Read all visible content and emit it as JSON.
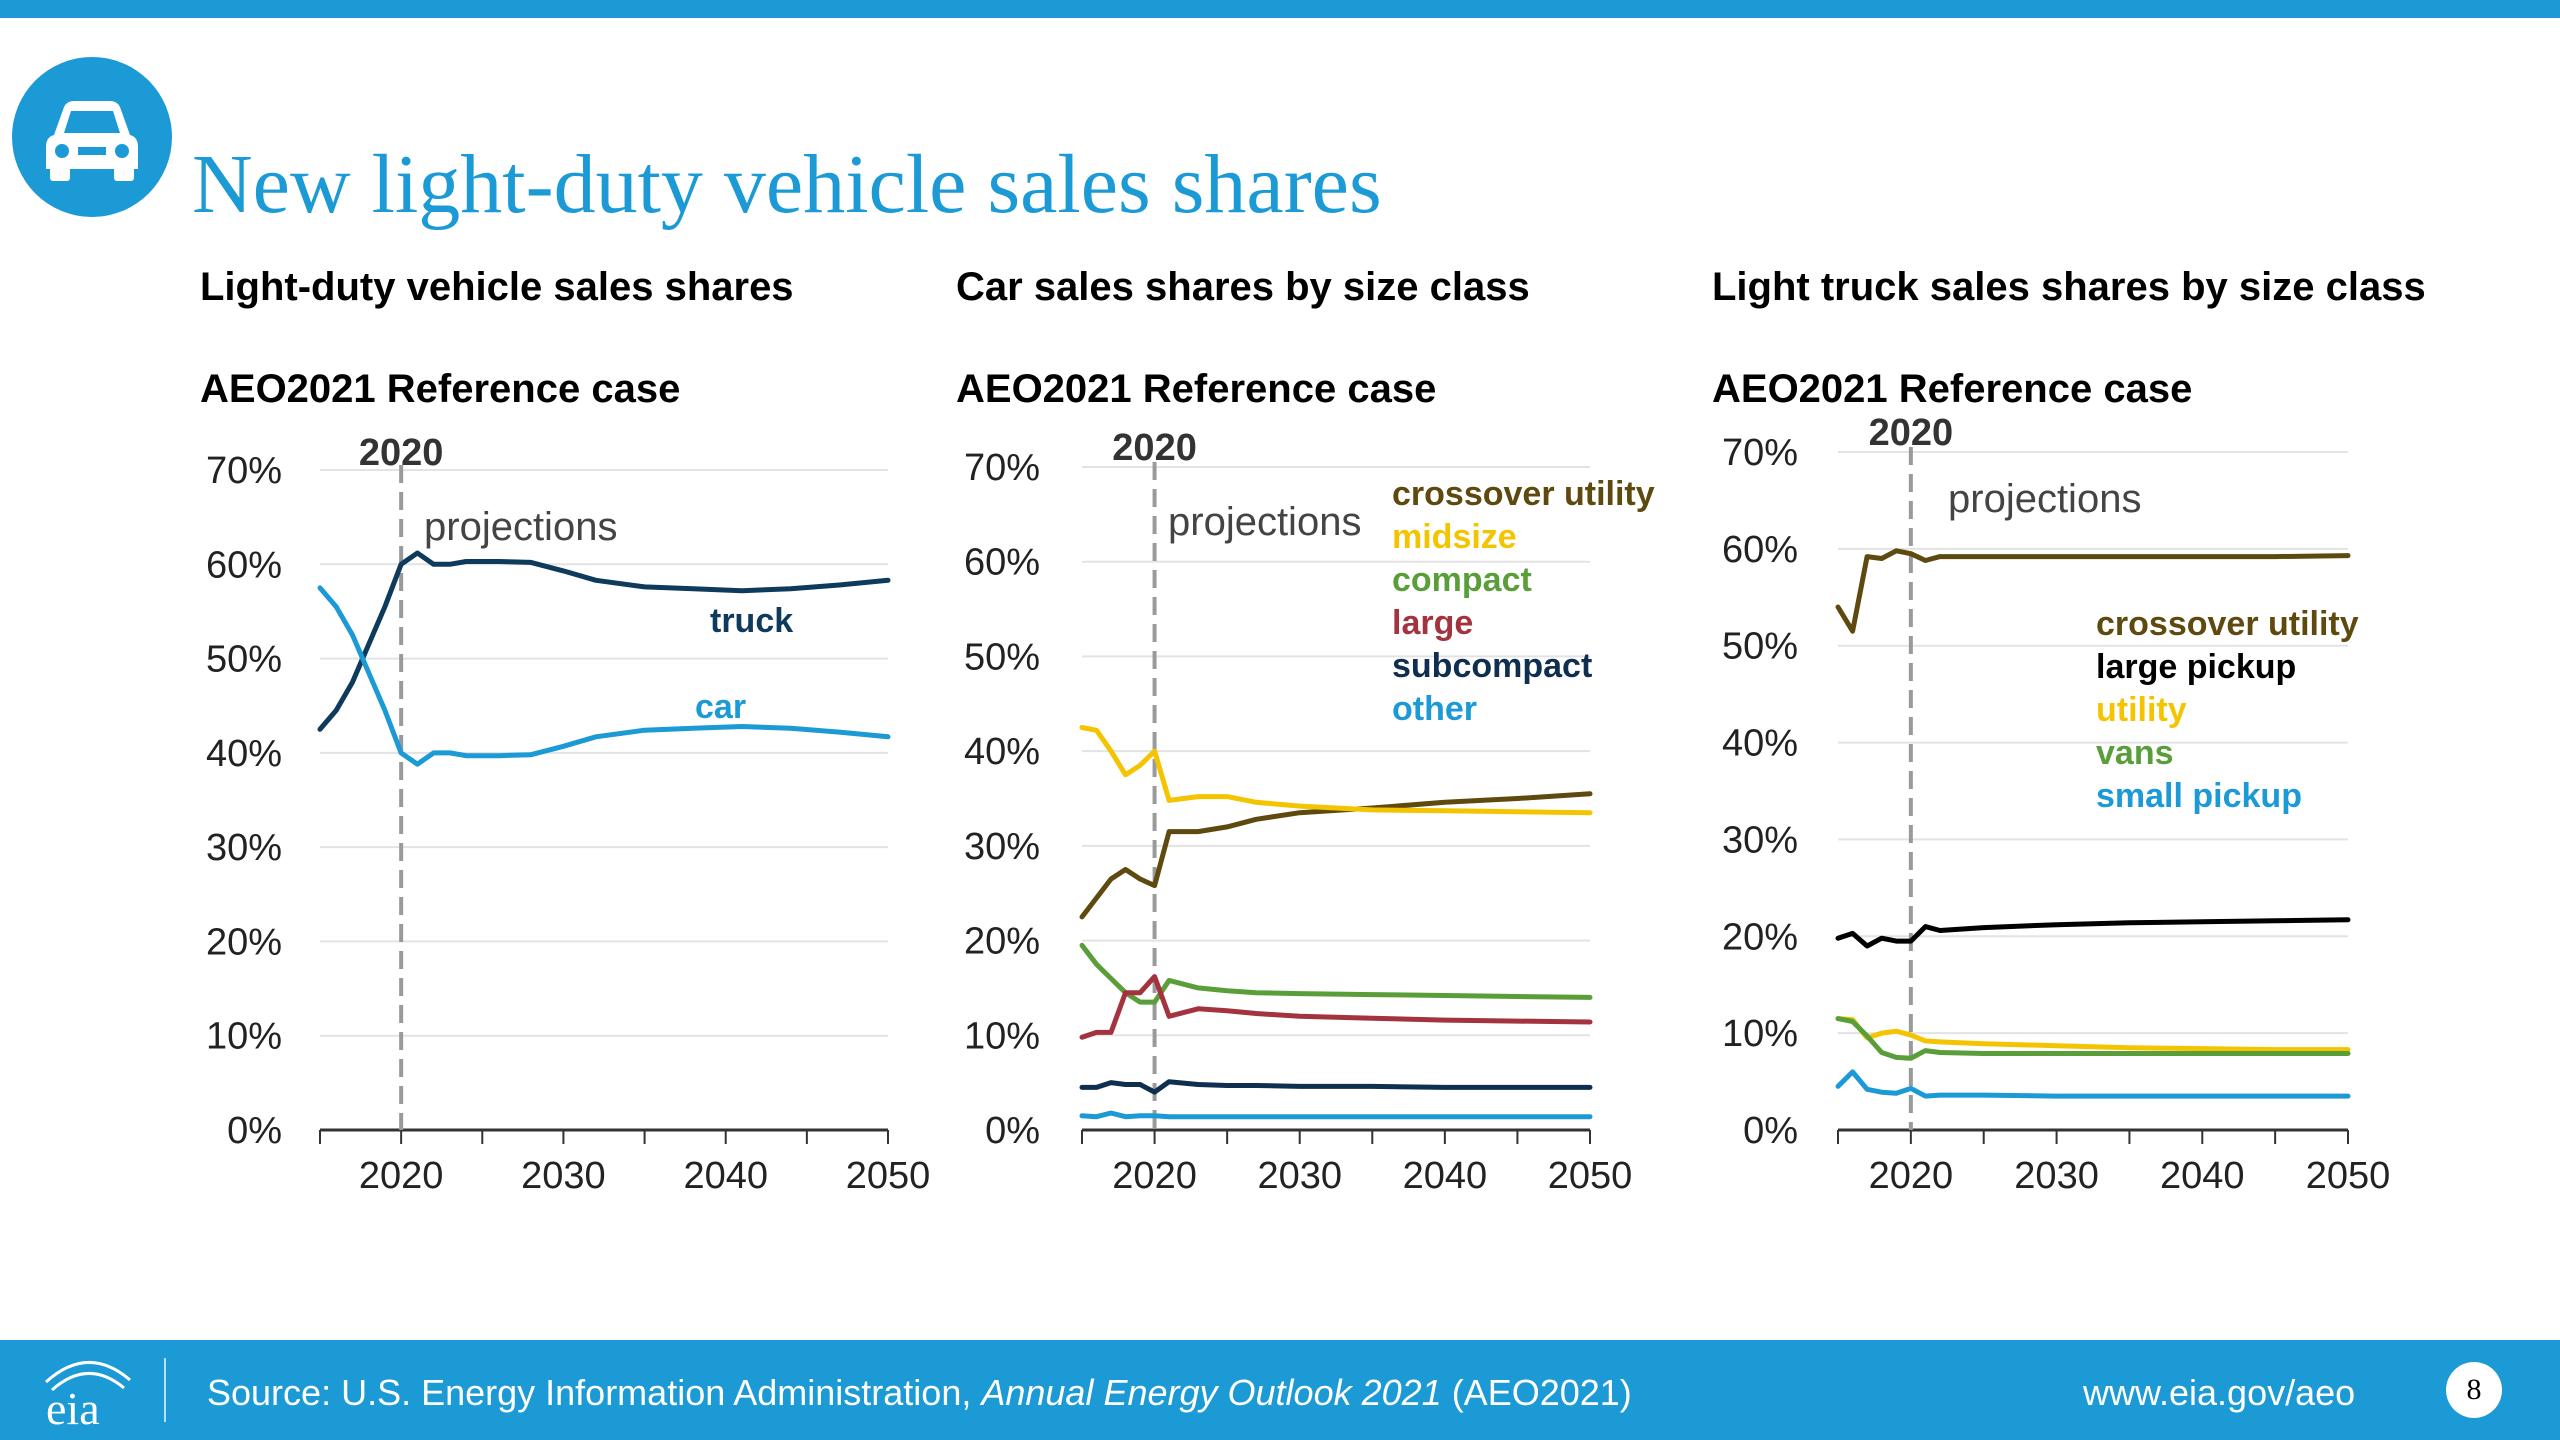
{
  "slide": {
    "title": "New light-duty vehicle sales shares",
    "icon": "car-icon",
    "accent_color": "#1b9ad6"
  },
  "footer": {
    "source_prefix": "Source: U.S. Energy Information Administration, ",
    "source_italic": "Annual Energy Outlook 2021",
    "source_suffix": " (AEO2021)",
    "url": "www.eia.gov/aeo",
    "page_number": "8",
    "logo": "eia-logo"
  },
  "chart_data": [
    {
      "type": "line",
      "title": "Light-duty vehicle sales shares",
      "subtitle": "AEO2021 Reference case",
      "x_ticks": [
        2020,
        2030,
        2040,
        2050
      ],
      "xlim": [
        2015,
        2050
      ],
      "y_ticks": [
        "0%",
        "10%",
        "20%",
        "30%",
        "40%",
        "50%",
        "60%",
        "70%"
      ],
      "ylim": [
        0,
        70
      ],
      "grid": "horizontal",
      "divider_year": 2020,
      "divider_label": "2020",
      "annotation": "projections",
      "series": [
        {
          "name": "truck",
          "color": "#0e3a5c",
          "x": [
            2015,
            2016,
            2017,
            2018,
            2019,
            2020,
            2021,
            2022,
            2023,
            2024,
            2026,
            2028,
            2030,
            2032,
            2035,
            2038,
            2041,
            2044,
            2047,
            2050
          ],
          "y": [
            42.5,
            44.5,
            47.5,
            51.5,
            55.5,
            60,
            61.2,
            60,
            60,
            60.3,
            60.3,
            60.2,
            59.3,
            58.3,
            57.6,
            57.4,
            57.2,
            57.4,
            57.8,
            58.3
          ]
        },
        {
          "name": "car",
          "color": "#1b9ad6",
          "x": [
            2015,
            2016,
            2017,
            2018,
            2019,
            2020,
            2021,
            2022,
            2023,
            2024,
            2026,
            2028,
            2030,
            2032,
            2035,
            2038,
            2041,
            2044,
            2047,
            2050
          ],
          "y": [
            57.5,
            55.5,
            52.5,
            48.5,
            44.5,
            40,
            38.8,
            40,
            40,
            39.7,
            39.7,
            39.8,
            40.7,
            41.7,
            42.4,
            42.6,
            42.8,
            42.6,
            42.2,
            41.7
          ]
        }
      ]
    },
    {
      "type": "line",
      "title": "Car sales shares by size class",
      "subtitle": "AEO2021 Reference case",
      "x_ticks": [
        2020,
        2030,
        2040,
        2050
      ],
      "xlim": [
        2015,
        2050
      ],
      "y_ticks": [
        "0%",
        "10%",
        "20%",
        "30%",
        "40%",
        "50%",
        "60%",
        "70%"
      ],
      "ylim": [
        0,
        70
      ],
      "grid": "horizontal",
      "divider_year": 2020,
      "divider_label": "2020",
      "annotation": "projections",
      "legend": "top-right",
      "series": [
        {
          "name": "crossover utility",
          "color": "#5e4a0e",
          "x": [
            2015,
            2016,
            2017,
            2018,
            2019,
            2020,
            2021,
            2023,
            2025,
            2027,
            2030,
            2035,
            2040,
            2045,
            2050
          ],
          "y": [
            22.5,
            24.5,
            26.5,
            27.5,
            26.5,
            25.8,
            31.5,
            31.5,
            32,
            32.8,
            33.5,
            34,
            34.6,
            35,
            35.5
          ]
        },
        {
          "name": "midsize",
          "color": "#f5c400",
          "x": [
            2015,
            2016,
            2017,
            2018,
            2019,
            2020,
            2021,
            2023,
            2025,
            2027,
            2030,
            2035,
            2040,
            2045,
            2050
          ],
          "y": [
            42.5,
            42.2,
            40,
            37.5,
            38.5,
            40,
            34.8,
            35.2,
            35.2,
            34.6,
            34.2,
            33.8,
            33.7,
            33.6,
            33.5
          ]
        },
        {
          "name": "compact",
          "color": "#5a9e3a",
          "x": [
            2015,
            2016,
            2017,
            2018,
            2019,
            2020,
            2021,
            2023,
            2025,
            2027,
            2030,
            2035,
            2040,
            2045,
            2050
          ],
          "y": [
            19.5,
            17.5,
            16,
            14.5,
            13.5,
            13.5,
            15.8,
            15,
            14.7,
            14.5,
            14.4,
            14.3,
            14.2,
            14.1,
            14
          ]
        },
        {
          "name": "large",
          "color": "#a3343f",
          "x": [
            2015,
            2016,
            2017,
            2018,
            2019,
            2020,
            2021,
            2023,
            2025,
            2027,
            2030,
            2035,
            2040,
            2045,
            2050
          ],
          "y": [
            9.8,
            10.3,
            10.3,
            14.5,
            14.5,
            16.2,
            12,
            12.8,
            12.6,
            12.3,
            12,
            11.8,
            11.6,
            11.5,
            11.4
          ]
        },
        {
          "name": "subcompact",
          "color": "#0e2f4f",
          "x": [
            2015,
            2016,
            2017,
            2018,
            2019,
            2020,
            2021,
            2023,
            2025,
            2027,
            2030,
            2035,
            2040,
            2045,
            2050
          ],
          "y": [
            4.5,
            4.5,
            5,
            4.8,
            4.8,
            4,
            5.1,
            4.8,
            4.7,
            4.7,
            4.6,
            4.6,
            4.5,
            4.5,
            4.5
          ]
        },
        {
          "name": "other",
          "color": "#1b9ad6",
          "x": [
            2015,
            2016,
            2017,
            2018,
            2019,
            2020,
            2021,
            2023,
            2025,
            2027,
            2030,
            2035,
            2040,
            2045,
            2050
          ],
          "y": [
            1.5,
            1.4,
            1.8,
            1.4,
            1.5,
            1.5,
            1.4,
            1.4,
            1.4,
            1.4,
            1.4,
            1.4,
            1.4,
            1.4,
            1.4
          ]
        }
      ]
    },
    {
      "type": "line",
      "title": "Light truck sales shares by size class",
      "subtitle": "AEO2021 Reference case",
      "x_ticks": [
        2020,
        2030,
        2040,
        2050
      ],
      "xlim": [
        2015,
        2050
      ],
      "y_ticks": [
        "0%",
        "10%",
        "20%",
        "30%",
        "40%",
        "50%",
        "60%",
        "70%"
      ],
      "ylim": [
        0,
        70
      ],
      "grid": "horizontal",
      "divider_year": 2020,
      "divider_label": "2020",
      "annotation": "projections",
      "legend": "right",
      "series": [
        {
          "name": "crossover utility",
          "color": "#5e4a0e",
          "x": [
            2015,
            2016,
            2017,
            2018,
            2019,
            2020,
            2021,
            2022,
            2025,
            2030,
            2035,
            2040,
            2045,
            2050
          ],
          "y": [
            54,
            51.5,
            59.2,
            59,
            59.8,
            59.5,
            58.8,
            59.2,
            59.2,
            59.2,
            59.2,
            59.2,
            59.2,
            59.3
          ]
        },
        {
          "name": "large pickup",
          "color": "#000000",
          "x": [
            2015,
            2016,
            2017,
            2018,
            2019,
            2020,
            2021,
            2022,
            2025,
            2030,
            2035,
            2040,
            2045,
            2050
          ],
          "y": [
            19.8,
            20.3,
            19,
            19.8,
            19.5,
            19.5,
            21,
            20.6,
            20.9,
            21.2,
            21.4,
            21.5,
            21.6,
            21.7
          ]
        },
        {
          "name": "utility",
          "color": "#f5c400",
          "x": [
            2015,
            2016,
            2017,
            2018,
            2019,
            2020,
            2021,
            2022,
            2025,
            2030,
            2035,
            2040,
            2045,
            2050
          ],
          "y": [
            11.5,
            11.4,
            9.5,
            10,
            10.2,
            9.8,
            9.2,
            9.1,
            8.9,
            8.7,
            8.5,
            8.4,
            8.3,
            8.3
          ]
        },
        {
          "name": "vans",
          "color": "#5a9e3a",
          "x": [
            2015,
            2016,
            2017,
            2018,
            2019,
            2020,
            2021,
            2022,
            2025,
            2030,
            2035,
            2040,
            2045,
            2050
          ],
          "y": [
            11.5,
            11.2,
            9.7,
            8,
            7.5,
            7.4,
            8.2,
            8,
            7.9,
            7.9,
            7.9,
            7.9,
            7.9,
            7.9
          ]
        },
        {
          "name": "small pickup",
          "color": "#1b9ad6",
          "x": [
            2015,
            2016,
            2017,
            2018,
            2019,
            2020,
            2021,
            2022,
            2025,
            2030,
            2035,
            2040,
            2045,
            2050
          ],
          "y": [
            4.5,
            6,
            4.2,
            3.9,
            3.8,
            4.3,
            3.5,
            3.6,
            3.6,
            3.5,
            3.5,
            3.5,
            3.5,
            3.5
          ]
        }
      ]
    }
  ]
}
